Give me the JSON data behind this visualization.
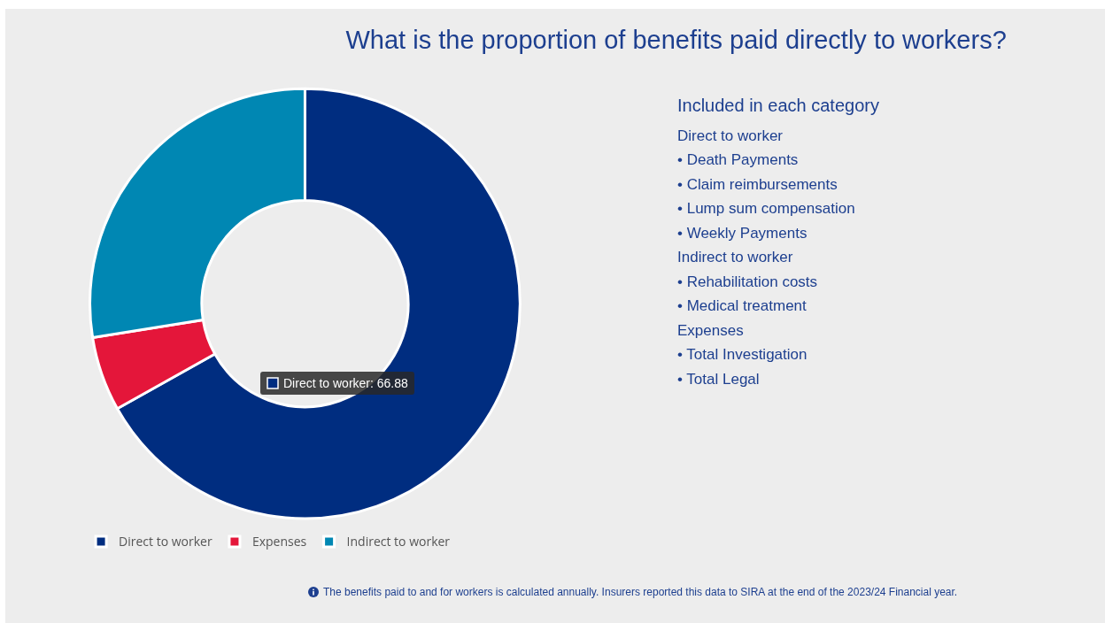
{
  "chart_data": {
    "type": "donut",
    "title": "What is the proportion of benefits paid directly to workers?",
    "categories": [
      "Direct to worker",
      "Expenses",
      "Indirect to worker"
    ],
    "values": [
      66.88,
      5.6,
      27.52
    ],
    "colors": [
      "#002d80",
      "#e4163a",
      "#0087b3"
    ],
    "value_labels": [
      "Direct to worker: 66.88",
      null,
      null
    ],
    "legend": "bottom",
    "annotations": [
      "Included in each category",
      "Direct to worker",
      "• Death Payments",
      "• Claim reimbursements",
      "• Lump sum compensation",
      "• Weekly Payments",
      "Indirect to worker",
      "• Rehabilitation costs",
      "• Medical treatment",
      "Expenses",
      "• Total Investigation",
      "• Total Legal",
      "The benefits paid to and for workers is calculated annually. Insurers reported this data to SIRA at the end of the 2023/24 Financial year."
    ]
  }
}
